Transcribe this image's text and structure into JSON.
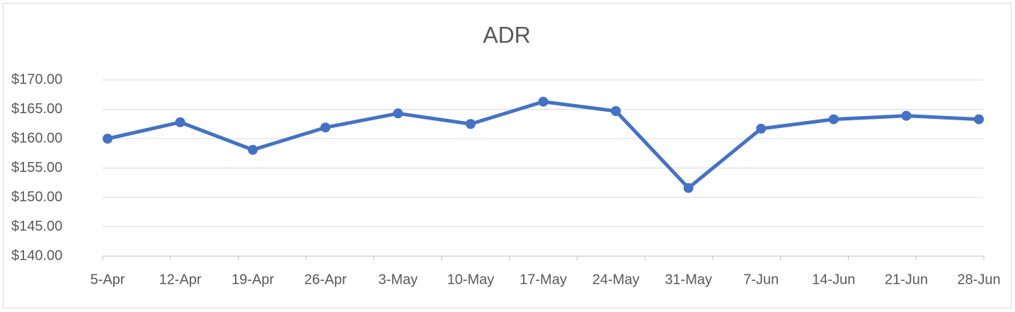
{
  "chart_data": {
    "type": "line",
    "title": "ADR",
    "categories": [
      "5-Apr",
      "12-Apr",
      "19-Apr",
      "26-Apr",
      "3-May",
      "10-May",
      "17-May",
      "24-May",
      "31-May",
      "7-Jun",
      "14-Jun",
      "21-Jun",
      "28-Jun"
    ],
    "values": [
      160.0,
      162.8,
      158.1,
      161.9,
      164.3,
      162.5,
      166.3,
      164.7,
      151.6,
      161.7,
      163.3,
      163.9,
      163.3
    ],
    "color": "#4472c4",
    "ylim": [
      140,
      170
    ],
    "yticks": [
      {
        "value": 140,
        "label": "$140.00"
      },
      {
        "value": 145,
        "label": "$145.00"
      },
      {
        "value": 150,
        "label": "$150.00"
      },
      {
        "value": 155,
        "label": "$155.00"
      },
      {
        "value": 160,
        "label": "$160.00"
      },
      {
        "value": 165,
        "label": "$165.00"
      },
      {
        "value": 170,
        "label": "$170.00"
      }
    ],
    "grid": true
  }
}
